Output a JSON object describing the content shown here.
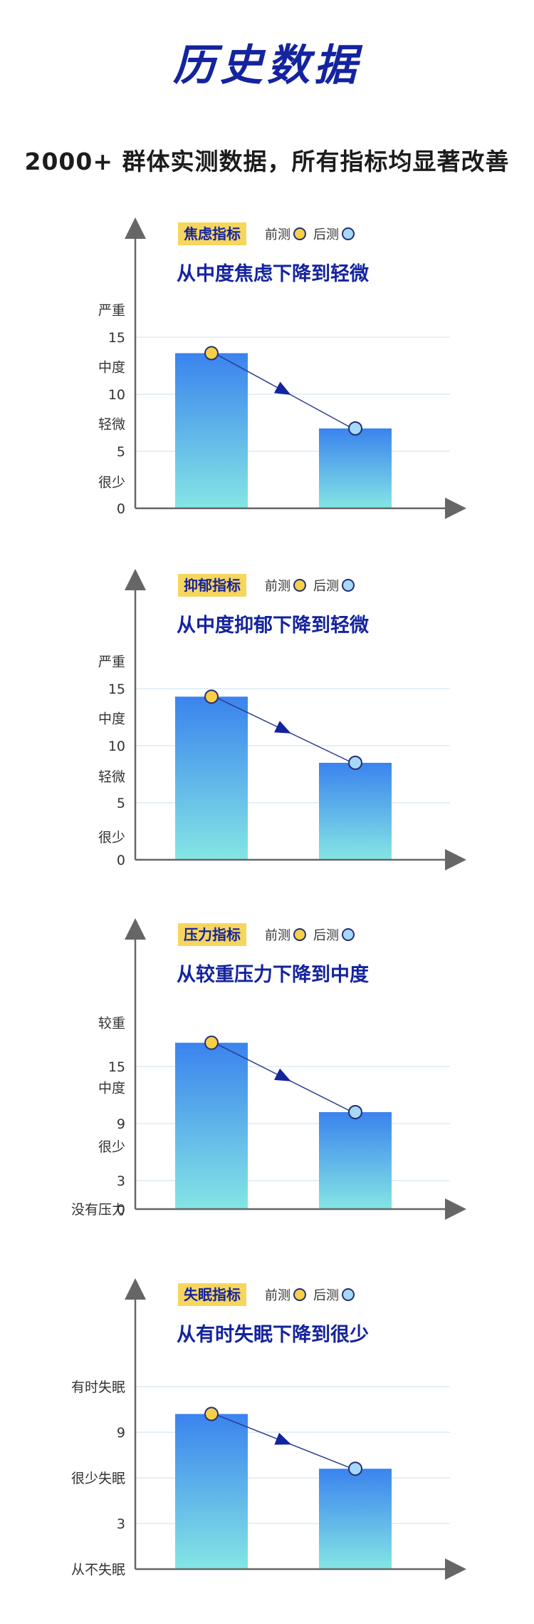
{
  "page": {
    "title": "历史数据",
    "subtitle": "2000+ 群体实测数据，所有指标均显著改善"
  },
  "legend": {
    "before": "前测",
    "after": "后测"
  },
  "colors": {
    "title": "#14239e",
    "highlight": "#f7d65e",
    "bar_top": "#3a83ee",
    "bar_bottom": "#84e6e4",
    "before_marker": "#f8cf47",
    "after_marker": "#a8d8f8",
    "axis": "#666666",
    "grid": "#dcecf4"
  },
  "chart_data": [
    {
      "type": "bar",
      "tag": "焦虑指标",
      "headline": "从中度焦虑下降到轻微",
      "categories": [
        "前测",
        "后测"
      ],
      "values": [
        13.6,
        7.0
      ],
      "ylim": [
        0,
        20
      ],
      "yticks": [
        {
          "value": 0,
          "label": "0"
        },
        {
          "value": 5,
          "label": "5"
        },
        {
          "value": 10,
          "label": "10"
        },
        {
          "value": 15,
          "label": "15"
        }
      ],
      "levels": [
        {
          "value": 2.3,
          "label": "很少"
        },
        {
          "value": 7.4,
          "label": "轻微"
        },
        {
          "value": 12.4,
          "label": "中度"
        },
        {
          "value": 17.4,
          "label": "严重"
        }
      ],
      "grid": true
    },
    {
      "type": "bar",
      "tag": "抑郁指标",
      "headline": "从中度抑郁下降到轻微",
      "categories": [
        "前测",
        "后测"
      ],
      "values": [
        14.3,
        8.5
      ],
      "ylim": [
        0,
        20
      ],
      "yticks": [
        {
          "value": 0,
          "label": "0"
        },
        {
          "value": 5,
          "label": "5"
        },
        {
          "value": 10,
          "label": "10"
        },
        {
          "value": 15,
          "label": "15"
        }
      ],
      "levels": [
        {
          "value": 2.0,
          "label": "很少"
        },
        {
          "value": 7.3,
          "label": "轻微"
        },
        {
          "value": 12.4,
          "label": "中度"
        },
        {
          "value": 17.4,
          "label": "严重"
        }
      ],
      "grid": true
    },
    {
      "type": "bar",
      "tag": "压力指标",
      "headline": "从较重压力下降到中度",
      "categories": [
        "前测",
        "后测"
      ],
      "values": [
        17.5,
        10.2
      ],
      "ylim": [
        0,
        24
      ],
      "yticks": [
        {
          "value": 0,
          "label": "0"
        },
        {
          "value": 3,
          "label": "3"
        },
        {
          "value": 9,
          "label": "9"
        },
        {
          "value": 15,
          "label": "15"
        }
      ],
      "levels": [
        {
          "value": 0,
          "label": "没有压力"
        },
        {
          "value": 6.6,
          "label": "很少"
        },
        {
          "value": 12.8,
          "label": "中度"
        },
        {
          "value": 19.6,
          "label": "较重"
        }
      ],
      "grid": true
    },
    {
      "type": "bar",
      "tag": "失眠指标",
      "headline": "从有时失眠下降到很少",
      "categories": [
        "前测",
        "后测"
      ],
      "values": [
        10.2,
        6.6
      ],
      "ylim": [
        0,
        15
      ],
      "yticks": [
        {
          "value": 3,
          "label": "3"
        },
        {
          "value": 6,
          "label": "很少失眠"
        },
        {
          "value": 9,
          "label": "9"
        },
        {
          "value": 12,
          "label": "有时失眠"
        }
      ],
      "levels": [
        {
          "value": 0,
          "label": "从不失眠"
        }
      ],
      "grid": true
    }
  ]
}
